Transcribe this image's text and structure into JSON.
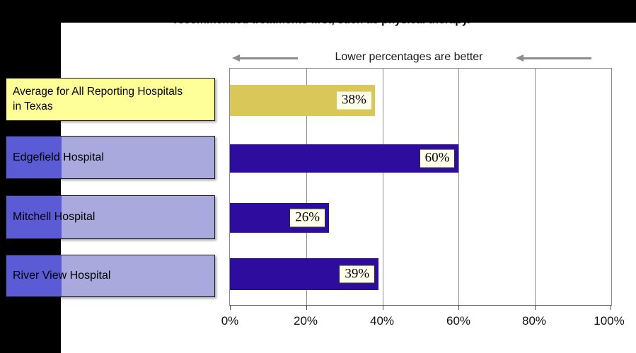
{
  "page": {
    "title_visible_line": "recommended treatments first, such as physical therapy.",
    "annotation": "Lower percentages are better"
  },
  "chart_data": {
    "type": "bar",
    "orientation": "horizontal",
    "title": "recommended treatments first, such as physical therapy.",
    "annotation": "Lower percentages are better",
    "categories": [
      "Average for All Reporting Hospitals in Texas",
      "Edgefield Hospital",
      "Mitchell Hospital",
      "River View Hospital"
    ],
    "values": [
      38,
      60,
      26,
      39
    ],
    "value_labels": [
      "38%",
      "60%",
      "26%",
      "39%"
    ],
    "bar_colors": [
      "#D9C75A",
      "#2E0C9E",
      "#2E0C9E",
      "#2E0C9E"
    ],
    "xlim": [
      0,
      100
    ],
    "x_tick_labels": [
      "0%",
      "20%",
      "40%",
      "60%",
      "80%",
      "100%"
    ],
    "grid": true,
    "legend_position": "none"
  },
  "category_labels": {
    "average_line1": "Average for All Reporting Hospitals",
    "average_line2": "in Texas"
  },
  "colors": {
    "bar_indigo": "#2E0C9E",
    "bar_yellow": "#D9C75A",
    "label_yellow": "#FFFF99",
    "label_purple": "#A9A9DE",
    "label_purple_dark": "#5B5BD6",
    "chip_bg": "#FFFFEC",
    "arrow_gray": "#8C8C8C",
    "black_bar": "#000000"
  }
}
